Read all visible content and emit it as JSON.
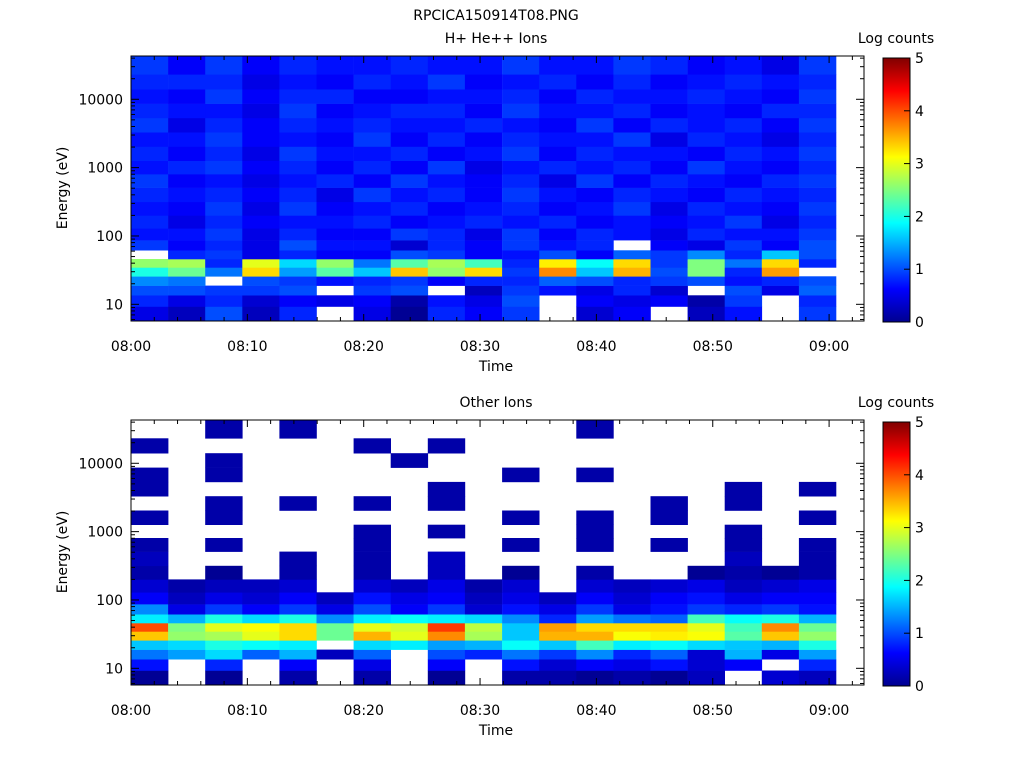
{
  "figure": {
    "title": "RPCICA150914T08.PNG"
  },
  "chart_data": [
    {
      "type": "heatmap",
      "title": "H+ He++ Ions",
      "xlabel": "Time",
      "ylabel": "Energy (eV)",
      "x_ticks": [
        "08:00",
        "08:10",
        "08:20",
        "08:30",
        "08:40",
        "08:50",
        "09:00"
      ],
      "x_range": [
        "08:00",
        "09:03"
      ],
      "y_scale": "log",
      "y_ticks": [
        10,
        100,
        1000,
        10000
      ],
      "y_range": [
        5.7,
        43000
      ],
      "colorbar": {
        "label": "Log counts",
        "ticks": [
          0,
          1,
          2,
          3,
          4,
          5
        ],
        "range": [
          0,
          5
        ],
        "colormap": "jet"
      },
      "time_start_minutes": 0,
      "time_step_minutes": 3.2,
      "energy_bands": [
        7.5,
        11.5,
        16,
        22,
        30,
        40,
        53,
        72,
        105,
        160,
        250,
        400,
        650,
        1000,
        1600,
        2600,
        4200,
        6800,
        11000,
        18000,
        30000
      ],
      "z_values": [
        [
          0.5,
          0.3,
          1.0,
          0.3,
          0.8,
          null,
          0.5,
          0.1,
          0.8,
          0.6,
          0.9,
          null,
          0.4,
          0.6,
          null,
          0.3,
          0.7,
          null,
          0.9
        ],
        [
          0.8,
          0.5,
          0.8,
          0.4,
          0.6,
          0.5,
          0.6,
          0.2,
          0.7,
          0.5,
          1.0,
          null,
          0.6,
          0.5,
          0.6,
          0.2,
          0.9,
          null,
          0.8
        ],
        [
          1.0,
          1.0,
          0.9,
          0.9,
          1.0,
          null,
          0.9,
          1.0,
          null,
          0.3,
          0.9,
          0.7,
          0.5,
          0.8,
          0.4,
          null,
          1.0,
          0.5,
          1.1
        ],
        [
          1.3,
          1.2,
          null,
          1.0,
          0.9,
          0.7,
          0.8,
          0.9,
          0.6,
          0.8,
          0.8,
          1.1,
          1.0,
          0.8,
          0.9,
          1.0,
          0.7,
          0.8,
          1.0
        ],
        [
          2.0,
          2.4,
          1.2,
          3.3,
          1.4,
          2.3,
          1.6,
          3.4,
          2.6,
          3.3,
          0.9,
          3.7,
          1.6,
          3.5,
          1.0,
          2.5,
          0.8,
          3.6,
          null
        ],
        [
          2.6,
          2.7,
          0.8,
          3.0,
          1.7,
          2.6,
          1.2,
          2.3,
          2.7,
          2.2,
          0.8,
          3.2,
          1.9,
          3.3,
          0.9,
          2.5,
          1.2,
          3.3,
          0.8
        ],
        [
          null,
          0.8,
          0.9,
          0.5,
          0.8,
          0.6,
          0.6,
          1.0,
          0.9,
          0.6,
          0.7,
          1.0,
          0.6,
          1.1,
          0.9,
          1.3,
          0.8,
          1.6,
          1.0
        ],
        [
          0.9,
          0.6,
          0.8,
          0.5,
          1.0,
          0.7,
          0.7,
          0.4,
          0.8,
          0.6,
          0.9,
          0.7,
          0.8,
          null,
          0.6,
          0.5,
          0.9,
          0.6,
          1.0
        ],
        [
          0.7,
          0.7,
          0.9,
          0.5,
          0.8,
          0.6,
          0.6,
          0.9,
          0.8,
          0.5,
          0.9,
          0.6,
          0.8,
          0.7,
          0.5,
          0.8,
          0.7,
          0.7,
          0.9
        ],
        [
          0.8,
          0.5,
          0.8,
          0.6,
          0.7,
          0.7,
          0.8,
          0.6,
          0.7,
          0.8,
          0.7,
          0.8,
          0.6,
          0.7,
          0.6,
          0.7,
          0.9,
          0.5,
          0.8
        ],
        [
          0.7,
          0.6,
          0.9,
          0.5,
          0.9,
          0.6,
          0.7,
          0.8,
          0.6,
          0.7,
          0.8,
          0.6,
          0.7,
          0.9,
          0.5,
          0.8,
          0.7,
          0.6,
          0.9
        ],
        [
          0.8,
          0.7,
          0.8,
          0.6,
          0.8,
          0.5,
          0.9,
          0.7,
          0.8,
          0.6,
          0.9,
          0.7,
          0.6,
          0.8,
          0.7,
          0.6,
          0.8,
          0.7,
          0.8
        ],
        [
          0.9,
          0.6,
          0.7,
          0.5,
          0.7,
          0.8,
          0.6,
          0.9,
          0.7,
          0.6,
          0.8,
          0.5,
          0.9,
          0.6,
          0.8,
          0.7,
          0.6,
          0.8,
          0.9
        ],
        [
          0.7,
          0.8,
          0.9,
          0.6,
          0.8,
          0.6,
          0.8,
          0.6,
          0.9,
          0.5,
          0.7,
          0.8,
          0.7,
          0.8,
          0.6,
          0.9,
          0.7,
          0.6,
          0.8
        ],
        [
          0.8,
          0.6,
          0.8,
          0.5,
          0.9,
          0.7,
          0.7,
          0.8,
          0.6,
          0.7,
          0.9,
          0.6,
          0.8,
          0.7,
          0.7,
          0.6,
          0.8,
          0.7,
          0.9
        ],
        [
          0.7,
          0.7,
          0.9,
          0.6,
          0.7,
          0.6,
          0.9,
          0.6,
          0.8,
          0.6,
          0.8,
          0.7,
          0.7,
          0.9,
          0.5,
          0.8,
          0.7,
          0.5,
          0.8
        ],
        [
          0.9,
          0.5,
          0.8,
          0.6,
          0.8,
          0.7,
          0.8,
          0.7,
          0.7,
          0.8,
          0.7,
          0.6,
          0.9,
          0.6,
          0.8,
          0.7,
          0.8,
          0.6,
          0.9
        ],
        [
          0.8,
          0.7,
          0.7,
          0.5,
          0.9,
          0.6,
          0.7,
          0.8,
          0.8,
          0.6,
          0.9,
          0.7,
          0.7,
          0.8,
          0.6,
          0.7,
          0.6,
          0.8,
          0.8
        ],
        [
          0.7,
          0.6,
          0.9,
          0.6,
          0.8,
          0.8,
          0.6,
          0.6,
          0.7,
          0.7,
          0.8,
          0.6,
          0.8,
          0.7,
          0.7,
          0.8,
          0.7,
          0.6,
          0.9
        ],
        [
          0.8,
          0.8,
          0.8,
          0.5,
          0.7,
          0.6,
          0.8,
          0.7,
          0.9,
          0.6,
          0.7,
          0.8,
          0.6,
          0.8,
          0.6,
          0.7,
          0.8,
          0.7,
          0.8
        ],
        [
          0.9,
          0.6,
          0.9,
          0.6,
          0.8,
          0.7,
          0.7,
          0.8,
          0.7,
          0.7,
          0.9,
          0.7,
          0.7,
          0.9,
          0.8,
          0.6,
          0.7,
          0.5,
          0.9
        ]
      ]
    },
    {
      "type": "heatmap",
      "title": "Other Ions",
      "xlabel": "Time",
      "ylabel": "Energy (eV)",
      "x_ticks": [
        "08:00",
        "08:10",
        "08:20",
        "08:30",
        "08:40",
        "08:50",
        "09:00"
      ],
      "x_range": [
        "08:00",
        "09:03"
      ],
      "y_scale": "log",
      "y_ticks": [
        10,
        100,
        1000,
        10000
      ],
      "y_range": [
        5.7,
        43000
      ],
      "colorbar": {
        "label": "Log counts",
        "ticks": [
          0,
          1,
          2,
          3,
          4,
          5
        ],
        "range": [
          0,
          5
        ],
        "colormap": "jet"
      },
      "time_start_minutes": 0,
      "time_step_minutes": 3.2,
      "energy_bands": [
        7.5,
        11.5,
        16,
        22,
        30,
        40,
        53,
        72,
        105,
        160,
        250,
        400,
        650,
        1000,
        1600,
        2600,
        4200,
        6800,
        11000,
        18000,
        30000
      ],
      "z_values": [
        [
          0.1,
          null,
          0.1,
          null,
          0.2,
          null,
          0.2,
          null,
          0.1,
          null,
          0.2,
          0.2,
          0.1,
          0.2,
          0.1,
          0.3,
          null,
          0.4,
          0.3
        ],
        [
          0.7,
          null,
          0.8,
          null,
          0.6,
          null,
          0.5,
          null,
          0.6,
          null,
          0.7,
          0.4,
          0.6,
          0.5,
          0.7,
          0.4,
          0.6,
          null,
          0.8
        ],
        [
          1.2,
          1.4,
          1.7,
          1.1,
          1.5,
          0.3,
          1.1,
          null,
          1.0,
          0.8,
          1.2,
          0.9,
          1.3,
          0.8,
          1.1,
          0.4,
          1.5,
          0.5,
          1.4
        ],
        [
          1.6,
          1.7,
          2.0,
          1.9,
          1.8,
          null,
          1.7,
          1.8,
          1.4,
          1.5,
          1.9,
          1.6,
          2.2,
          1.8,
          1.9,
          1.7,
          1.6,
          1.5,
          2.0
        ],
        [
          3.4,
          2.6,
          2.7,
          3.0,
          3.3,
          2.4,
          3.5,
          3.0,
          3.7,
          2.7,
          1.6,
          3.5,
          3.5,
          3.1,
          3.2,
          3.1,
          2.3,
          3.4,
          2.6
        ],
        [
          4.0,
          2.5,
          3.0,
          3.1,
          3.3,
          2.4,
          3.0,
          2.9,
          4.1,
          2.8,
          1.6,
          3.6,
          3.3,
          3.3,
          3.3,
          3.0,
          2.2,
          3.7,
          2.4
        ],
        [
          1.8,
          1.5,
          2.0,
          1.7,
          2.0,
          1.3,
          1.8,
          1.9,
          1.8,
          1.7,
          1.3,
          0.8,
          1.4,
          1.2,
          1.1,
          2.2,
          1.9,
          2.0,
          1.5
        ],
        [
          1.3,
          0.5,
          0.9,
          0.6,
          0.9,
          0.5,
          1.0,
          0.6,
          0.9,
          0.4,
          0.7,
          0.5,
          0.9,
          0.5,
          0.7,
          0.9,
          0.8,
          0.9,
          0.7
        ],
        [
          0.6,
          0.3,
          0.5,
          0.4,
          0.6,
          0.3,
          0.7,
          0.5,
          0.6,
          0.3,
          0.5,
          0.3,
          0.6,
          0.4,
          0.6,
          0.7,
          0.5,
          0.6,
          0.6
        ],
        [
          0.4,
          0.2,
          0.3,
          0.3,
          0.4,
          null,
          0.4,
          0.3,
          0.5,
          0.2,
          0.4,
          null,
          0.4,
          0.3,
          0.4,
          0.5,
          0.3,
          0.4,
          0.5
        ],
        [
          0.2,
          null,
          0.1,
          null,
          0.2,
          null,
          0.2,
          null,
          0.3,
          null,
          0.1,
          null,
          0.2,
          null,
          null,
          0.1,
          0.2,
          0.1,
          0.2
        ],
        [
          0.3,
          null,
          null,
          null,
          0.2,
          null,
          0.2,
          null,
          0.3,
          null,
          null,
          null,
          null,
          null,
          null,
          null,
          0.3,
          null,
          0.2
        ],
        [
          0.2,
          null,
          0.2,
          null,
          null,
          null,
          0.2,
          null,
          null,
          null,
          0.2,
          null,
          0.2,
          null,
          0.2,
          null,
          0.2,
          null,
          0.2
        ],
        [
          null,
          null,
          null,
          null,
          null,
          null,
          0.2,
          null,
          0.2,
          null,
          null,
          null,
          0.2,
          null,
          null,
          null,
          0.2,
          null,
          null
        ],
        [
          0.2,
          null,
          0.2,
          null,
          null,
          null,
          null,
          null,
          null,
          null,
          0.2,
          null,
          0.2,
          null,
          0.2,
          null,
          null,
          null,
          0.2
        ],
        [
          null,
          null,
          0.2,
          null,
          0.2,
          null,
          0.2,
          null,
          0.2,
          null,
          null,
          null,
          null,
          null,
          0.2,
          null,
          0.2,
          null,
          null
        ],
        [
          0.2,
          null,
          null,
          null,
          null,
          null,
          null,
          null,
          0.2,
          null,
          null,
          null,
          null,
          null,
          null,
          null,
          0.2,
          null,
          0.2
        ],
        [
          0.2,
          null,
          0.2,
          null,
          null,
          null,
          null,
          null,
          null,
          null,
          0.2,
          null,
          0.2,
          null,
          null,
          null,
          null,
          null,
          null
        ],
        [
          null,
          null,
          0.2,
          null,
          null,
          null,
          null,
          0.2,
          null,
          null,
          null,
          null,
          null,
          null,
          null,
          null,
          null,
          null,
          null
        ],
        [
          0.2,
          null,
          null,
          null,
          null,
          null,
          0.2,
          null,
          0.2,
          null,
          null,
          null,
          null,
          null,
          null,
          null,
          null,
          null,
          null
        ],
        [
          null,
          null,
          0.2,
          null,
          0.2,
          null,
          null,
          null,
          null,
          null,
          null,
          null,
          0.2,
          null,
          null,
          null,
          null,
          null,
          null
        ]
      ]
    }
  ]
}
